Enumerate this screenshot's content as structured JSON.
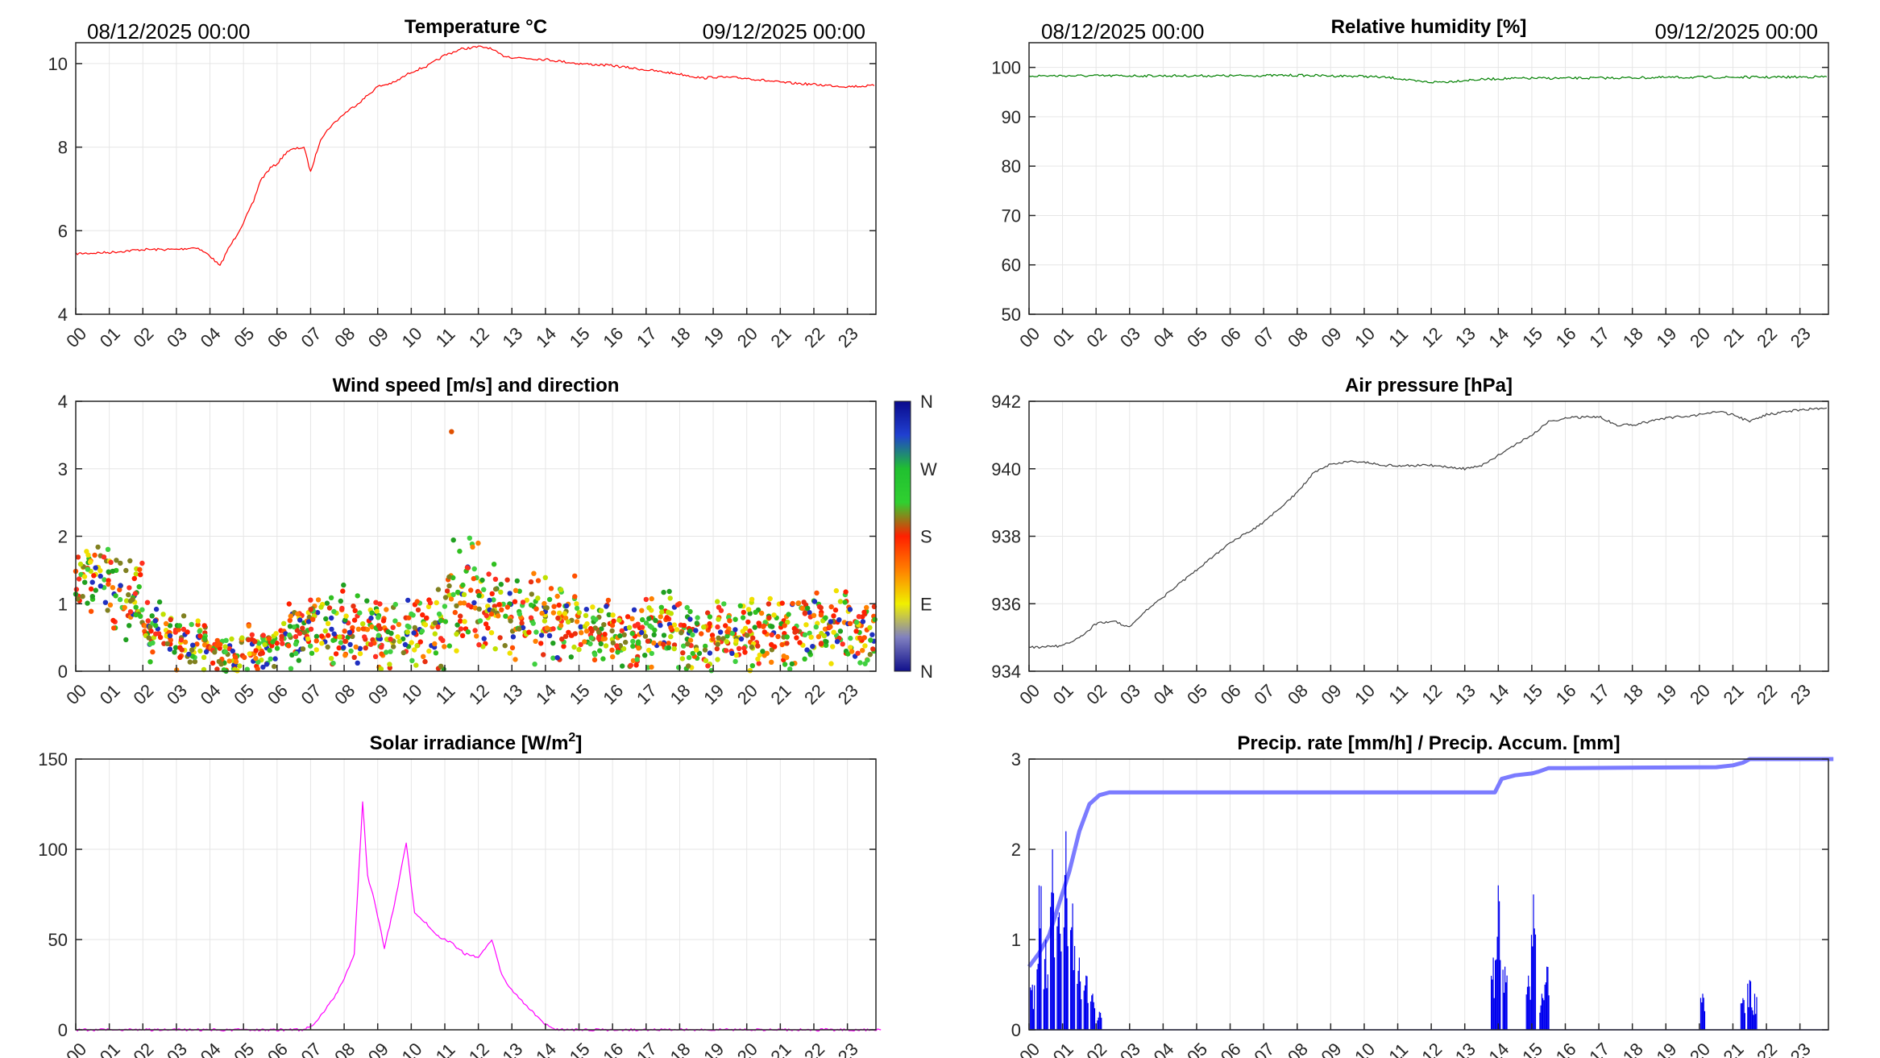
{
  "header": {
    "start": "08/12/2025 00:00",
    "end": "09/12/2025 00:00"
  },
  "hour_labels": [
    "00",
    "01",
    "02",
    "03",
    "04",
    "05",
    "06",
    "07",
    "08",
    "09",
    "10",
    "11",
    "12",
    "13",
    "14",
    "15",
    "16",
    "17",
    "18",
    "19",
    "20",
    "21",
    "22",
    "23"
  ],
  "colorbar": {
    "labels": [
      "N",
      "W",
      "S",
      "E",
      "N"
    ],
    "colors": [
      "#0a0a8c",
      "#2040d0",
      "#20c030",
      "#30d030",
      "#ff2000",
      "#ff8000",
      "#f0f000",
      "#8080c0",
      "#10108c"
    ]
  },
  "chart_data": [
    {
      "id": "temperature",
      "type": "line",
      "title": "Temperature °C",
      "color": "#ff0000",
      "ylim": [
        4,
        10.5
      ],
      "yticks": [
        4,
        6,
        8,
        10
      ],
      "x": [
        0,
        1,
        2,
        3,
        3.6,
        4.0,
        4.3,
        4.5,
        4.8,
        5.0,
        5.3,
        5.5,
        5.8,
        6.0,
        6.3,
        6.5,
        6.8,
        7.0,
        7.3,
        7.6,
        8.0,
        8.5,
        9.0,
        9.5,
        10.0,
        10.5,
        11.0,
        11.5,
        12.0,
        12.3,
        12.7,
        13.0,
        14.0,
        15.0,
        16.0,
        17.0,
        18.0,
        18.7,
        19.0,
        20.0,
        21.0,
        22.0,
        23.0,
        23.8
      ],
      "values": [
        5.45,
        5.48,
        5.55,
        5.55,
        5.6,
        5.4,
        5.15,
        5.5,
        5.9,
        6.2,
        6.7,
        7.2,
        7.5,
        7.6,
        7.9,
        7.95,
        8.0,
        7.4,
        8.2,
        8.5,
        8.8,
        9.1,
        9.45,
        9.55,
        9.8,
        9.95,
        10.2,
        10.35,
        10.4,
        10.38,
        10.2,
        10.15,
        10.1,
        10.0,
        9.95,
        9.85,
        9.75,
        9.65,
        9.68,
        9.65,
        9.55,
        9.5,
        9.45,
        9.47
      ]
    },
    {
      "id": "humidity",
      "type": "line",
      "title": "Relative humidity [%]",
      "color": "#008000",
      "ylim": [
        50,
        105
      ],
      "yticks": [
        50,
        60,
        70,
        80,
        90,
        100
      ],
      "x": [
        0,
        3,
        6,
        8,
        9,
        10,
        11,
        11.5,
        12,
        12.5,
        13,
        14,
        15,
        16,
        18,
        20,
        22,
        23.8
      ],
      "values": [
        98.3,
        98.3,
        98.3,
        98.4,
        98.3,
        98.2,
        97.8,
        97.2,
        97.0,
        97.1,
        97.4,
        97.7,
        97.8,
        97.8,
        97.9,
        98.0,
        98.0,
        98.1
      ]
    },
    {
      "id": "wind",
      "type": "scatter",
      "title": "Wind speed [m/s] and direction",
      "ylim": [
        0,
        4
      ],
      "yticks": [
        0,
        1,
        2,
        3,
        4
      ],
      "hourly_mean_speed": [
        1.4,
        1.1,
        0.6,
        0.4,
        0.25,
        0.35,
        0.55,
        0.7,
        0.6,
        0.55,
        0.6,
        1.05,
        0.95,
        0.8,
        0.75,
        0.6,
        0.55,
        0.6,
        0.5,
        0.5,
        0.55,
        0.55,
        0.65,
        0.55
      ],
      "hourly_spread": [
        0.6,
        0.7,
        0.5,
        0.5,
        0.35,
        0.45,
        0.55,
        0.65,
        0.7,
        0.65,
        0.7,
        1.0,
        0.9,
        0.8,
        0.7,
        0.6,
        0.6,
        0.65,
        0.6,
        0.6,
        0.65,
        0.65,
        0.7,
        0.6
      ],
      "max_point": [
        11.2,
        3.55
      ]
    },
    {
      "id": "pressure",
      "type": "line",
      "title": "Air pressure [hPa]",
      "color": "#404040",
      "ylim": [
        934,
        942
      ],
      "yticks": [
        934,
        936,
        938,
        940,
        942
      ],
      "x": [
        0,
        1,
        1.5,
        2,
        2.5,
        3,
        3.5,
        4,
        5,
        6,
        7,
        8,
        8.5,
        9,
        9.5,
        10,
        10.5,
        11,
        12,
        13,
        13.5,
        14,
        14.5,
        15,
        15.5,
        16,
        17,
        17.5,
        18,
        19,
        20,
        20.5,
        21,
        21.5,
        22,
        23,
        23.8
      ],
      "values": [
        934.7,
        934.75,
        935.0,
        935.4,
        935.5,
        935.3,
        935.8,
        936.2,
        937.0,
        937.8,
        938.4,
        939.3,
        939.9,
        940.15,
        940.2,
        940.2,
        940.1,
        940.1,
        940.1,
        940.0,
        940.1,
        940.4,
        940.7,
        941.0,
        941.4,
        941.5,
        941.55,
        941.3,
        941.3,
        941.5,
        941.6,
        941.7,
        941.6,
        941.4,
        941.6,
        941.75,
        941.8
      ]
    },
    {
      "id": "solar",
      "type": "line",
      "title": "Solar irradiance [W/m",
      "title_sup": "2",
      "title_end": "]",
      "color": "#ff00ff",
      "ylim": [
        0,
        150
      ],
      "yticks": [
        0,
        50,
        100,
        150
      ],
      "x": [
        0,
        6.8,
        7.1,
        7.4,
        7.7,
        8.0,
        8.3,
        8.55,
        8.7,
        8.9,
        9.2,
        9.5,
        9.85,
        10.1,
        10.4,
        10.8,
        11.2,
        11.6,
        12.0,
        12.4,
        12.7,
        13.0,
        13.5,
        14.0,
        14.3,
        24
      ],
      "values": [
        0,
        0,
        3,
        10,
        18,
        28,
        42,
        126,
        85,
        72,
        45,
        70,
        103,
        65,
        60,
        52,
        48,
        42,
        40,
        50,
        30,
        22,
        12,
        3,
        0,
        0
      ]
    },
    {
      "id": "precip",
      "type": "line",
      "title": "Precip. rate [mm/h] / Precip. Accum. [mm]",
      "ylim": [
        0,
        3
      ],
      "yticks": [
        0,
        1,
        2,
        3
      ],
      "series": [
        {
          "name": "Precip. Accum.",
          "color": "#7b7bff",
          "x": [
            0,
            0.3,
            0.6,
            0.9,
            1.2,
            1.5,
            1.8,
            2.1,
            2.4,
            13.9,
            14.1,
            14.5,
            15.0,
            15.2,
            15.5,
            16.0,
            20.5,
            21.0,
            21.3,
            21.5,
            24
          ],
          "values": [
            0.7,
            0.85,
            1.05,
            1.4,
            1.75,
            2.2,
            2.5,
            2.6,
            2.63,
            2.63,
            2.78,
            2.82,
            2.84,
            2.86,
            2.9,
            2.9,
            2.91,
            2.93,
            2.96,
            3.0,
            3.0
          ]
        },
        {
          "name": "Precip. rate",
          "color": "#0000ee",
          "spikes": [
            [
              0.1,
              0.5
            ],
            [
              0.3,
              1.6
            ],
            [
              0.5,
              1.0
            ],
            [
              0.7,
              2.0
            ],
            [
              0.9,
              1.3
            ],
            [
              1.1,
              2.2
            ],
            [
              1.3,
              1.4
            ],
            [
              1.5,
              0.8
            ],
            [
              1.7,
              0.6
            ],
            [
              1.9,
              0.4
            ],
            [
              2.1,
              0.2
            ],
            [
              13.85,
              0.8
            ],
            [
              14.0,
              1.6
            ],
            [
              14.2,
              0.7
            ],
            [
              14.9,
              0.6
            ],
            [
              15.05,
              1.5
            ],
            [
              15.3,
              0.4
            ],
            [
              15.45,
              0.7
            ],
            [
              20.1,
              0.4
            ],
            [
              21.3,
              0.35
            ],
            [
              21.5,
              0.55
            ],
            [
              21.65,
              0.4
            ]
          ]
        }
      ]
    }
  ]
}
